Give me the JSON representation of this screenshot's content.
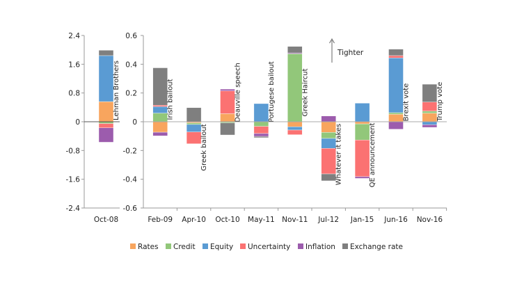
{
  "chart_data": [
    {
      "type": "bar",
      "stacked": true,
      "categories": [
        "Oct-08"
      ],
      "ylim": [
        -2.4,
        2.4
      ],
      "yticks": [
        "2.4",
        "1.6",
        "0.8",
        "0",
        "-0.8",
        "-1.6",
        "-2.4"
      ],
      "annotations": [
        "Lehman Brothers"
      ],
      "series": [
        {
          "name": "Rates",
          "values": [
            0.56
          ]
        },
        {
          "name": "Credit",
          "values": [
            -0.05
          ]
        },
        {
          "name": "Equity",
          "values": [
            1.28
          ]
        },
        {
          "name": "Uncertainty",
          "values": [
            -0.12
          ]
        },
        {
          "name": "Inflation",
          "values": [
            -0.4
          ]
        },
        {
          "name": "Exchange rate",
          "values": [
            0.15
          ]
        }
      ]
    },
    {
      "type": "bar",
      "stacked": true,
      "categories": [
        "Feb-09",
        "Apr-10",
        "Oct-10",
        "May-11",
        "Nov-11",
        "Jul-12",
        "Jan-15",
        "Jun-16",
        "Nov-16"
      ],
      "ylim": [
        -0.6,
        0.6
      ],
      "yticks": [
        "0.6",
        "0.4",
        "0.2",
        "0",
        "-0.2",
        "-0.4",
        "-0.6"
      ],
      "annotations": [
        "Irish  bailout",
        "Greek bailout",
        "Deauville speech",
        "Portugese bailout",
        "Greek Haircut",
        "Whatever it takes",
        "QE  announcement",
        "Brexit vote",
        "Trump vote"
      ],
      "arrow_label": "Tighter",
      "series": [
        {
          "name": "Rates",
          "values": [
            -0.073,
            -0.008,
            0.056,
            0,
            -0.035,
            -0.074,
            -0.015,
            0.052,
            0.06
          ]
        },
        {
          "name": "Credit",
          "values": [
            0.06,
            -0.011,
            -0.008,
            -0.032,
            0.473,
            -0.042,
            -0.112,
            0.011,
            0.014
          ]
        },
        {
          "name": "Equity",
          "values": [
            0.045,
            -0.052,
            0,
            0.126,
            -0.023,
            -0.069,
            0.129,
            0.381,
            -0.021
          ]
        },
        {
          "name": "Uncertainty",
          "values": [
            0.01,
            -0.082,
            0.159,
            -0.05,
            -0.032,
            -0.178,
            -0.255,
            0.016,
            0.063
          ]
        },
        {
          "name": "Inflation",
          "values": [
            -0.025,
            0,
            0.012,
            -0.02,
            0.006,
            0.04,
            -0.012,
            -0.052,
            -0.018
          ]
        },
        {
          "name": "Exchange rate",
          "values": [
            0.26,
            0.098,
            -0.084,
            -0.009,
            0.045,
            -0.048,
            0,
            0.045,
            0.124
          ]
        }
      ]
    }
  ],
  "legend": {
    "position": "bottom",
    "items": [
      "Rates",
      "Credit",
      "Equity",
      "Uncertainty",
      "Inflation",
      "Exchange rate"
    ]
  },
  "colors": {
    "Rates": "#f8a55e",
    "Credit": "#92c77a",
    "Equity": "#5a9bd3",
    "Uncertainty": "#fb7272",
    "Inflation": "#9c5cad",
    "Exchange rate": "#7f7f7f"
  }
}
